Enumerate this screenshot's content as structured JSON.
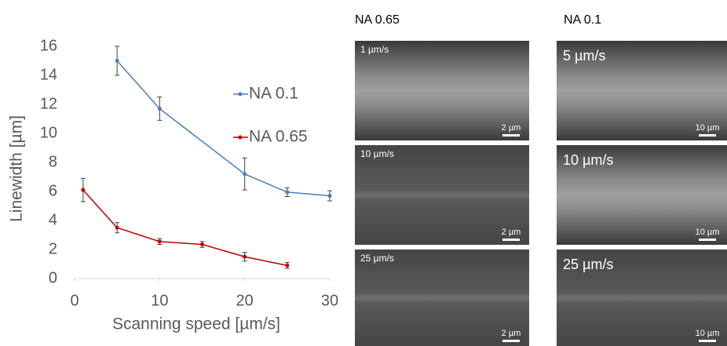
{
  "chart_data": {
    "type": "line",
    "x_label": "Scanning speed [µm/s]",
    "y_label": "Linewidth [µm]",
    "xlim": [
      0,
      30
    ],
    "xticks": [
      0,
      10,
      20,
      30
    ],
    "ylim": [
      0,
      16
    ],
    "yticks": [
      0,
      2,
      4,
      6,
      8,
      10,
      12,
      14,
      16
    ],
    "grid": false,
    "series": [
      {
        "name": "NA 0.1",
        "color": "#4a7ebb",
        "x": [
          5,
          10,
          20,
          25,
          30
        ],
        "values": [
          15,
          11.7,
          7.2,
          5.95,
          5.7
        ],
        "errors": [
          1,
          0.8,
          1.1,
          0.3,
          0.35
        ]
      },
      {
        "name": "NA 0.65",
        "color": "#c00000",
        "x": [
          1,
          5,
          10,
          15,
          20,
          25
        ],
        "values": [
          6.1,
          3.5,
          2.55,
          2.35,
          1.5,
          0.9
        ],
        "errors": [
          0.8,
          0.35,
          0.2,
          0.2,
          0.3,
          0.2
        ]
      }
    ]
  },
  "panels": [
    {
      "title": "NA 0.65",
      "images": [
        {
          "label": "1 µm/s",
          "scale": "2 µm"
        },
        {
          "label": "10 µm/s",
          "scale": "2 µm"
        },
        {
          "label": "25 µm/s",
          "scale": "2 µm"
        }
      ]
    },
    {
      "title": "NA 0.1",
      "images": [
        {
          "label": "5 µm/s",
          "scale": "10 µm"
        },
        {
          "label": "10 µm/s",
          "scale": "10 µm"
        },
        {
          "label": "25 µm/s",
          "scale": "10 µm"
        }
      ]
    }
  ]
}
